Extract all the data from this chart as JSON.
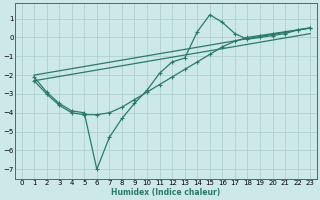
{
  "xlabel": "Humidex (Indice chaleur)",
  "bg_color": "#cce8e8",
  "grid_color": "#aacccc",
  "line_color": "#2a7a6a",
  "xlim": [
    -0.5,
    23.5
  ],
  "ylim": [
    -7.5,
    1.8
  ],
  "xticks": [
    0,
    1,
    2,
    3,
    4,
    5,
    6,
    7,
    8,
    9,
    10,
    11,
    12,
    13,
    14,
    15,
    16,
    17,
    18,
    19,
    20,
    21,
    22,
    23
  ],
  "yticks": [
    1,
    0,
    -1,
    -2,
    -3,
    -4,
    -5,
    -6,
    -7
  ],
  "trend1_x": [
    1,
    23
  ],
  "trend1_y": [
    -2.0,
    0.5
  ],
  "trend2_x": [
    1,
    23
  ],
  "trend2_y": [
    -2.3,
    0.2
  ],
  "series_x": [
    1,
    2,
    3,
    4,
    5,
    6,
    7,
    8,
    9,
    10,
    11,
    12,
    13,
    14,
    15,
    16,
    17,
    18,
    19,
    20,
    21,
    22,
    23
  ],
  "series_y": [
    -2.1,
    -2.9,
    -3.5,
    -3.9,
    -4.0,
    -7.0,
    -5.3,
    -4.3,
    -3.5,
    -2.8,
    -1.9,
    -1.3,
    -1.1,
    0.3,
    1.2,
    0.8,
    0.2,
    -0.1,
    0.0,
    0.1,
    0.2,
    0.4,
    0.5
  ],
  "series2_x": [
    1,
    2,
    3,
    4,
    5,
    6,
    7,
    8,
    9,
    10,
    11,
    12,
    13,
    14,
    15,
    16,
    17,
    18,
    19,
    20,
    21,
    22,
    23
  ],
  "series2_y": [
    -2.3,
    -3.0,
    -3.6,
    -4.0,
    -4.1,
    -4.1,
    -4.0,
    -3.7,
    -3.3,
    -2.9,
    -2.5,
    -2.1,
    -1.7,
    -1.3,
    -0.9,
    -0.5,
    -0.2,
    0.0,
    0.1,
    0.2,
    0.3,
    0.4,
    0.5
  ]
}
